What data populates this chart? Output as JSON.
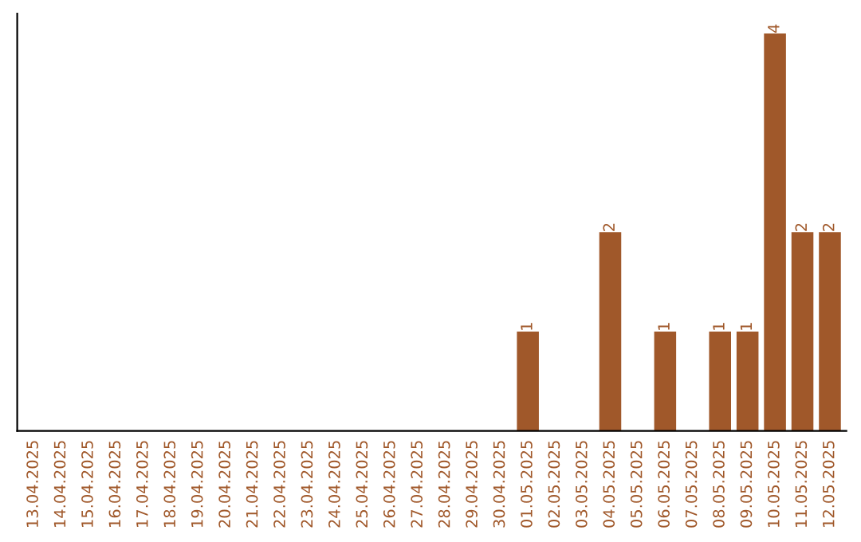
{
  "chart_data": {
    "type": "bar",
    "categories": [
      "13.04.2025",
      "14.04.2025",
      "15.04.2025",
      "16.04.2025",
      "17.04.2025",
      "18.04.2025",
      "19.04.2025",
      "20.04.2025",
      "21.04.2025",
      "22.04.2025",
      "23.04.2025",
      "24.04.2025",
      "25.04.2025",
      "26.04.2025",
      "27.04.2025",
      "28.04.2025",
      "29.04.2025",
      "30.04.2025",
      "01.05.2025",
      "02.05.2025",
      "03.05.2025",
      "04.05.2025",
      "05.05.2025",
      "06.05.2025",
      "07.05.2025",
      "08.05.2025",
      "09.05.2025",
      "10.05.2025",
      "11.05.2025",
      "12.05.2025"
    ],
    "values": [
      null,
      null,
      null,
      null,
      null,
      null,
      null,
      null,
      null,
      null,
      null,
      null,
      null,
      null,
      null,
      null,
      null,
      null,
      1,
      null,
      null,
      2,
      null,
      1,
      null,
      1,
      1,
      4,
      2,
      2
    ],
    "data_labels": true,
    "color": "#a0582a",
    "tick_labels": "x",
    "grid": false,
    "legend": false
  }
}
